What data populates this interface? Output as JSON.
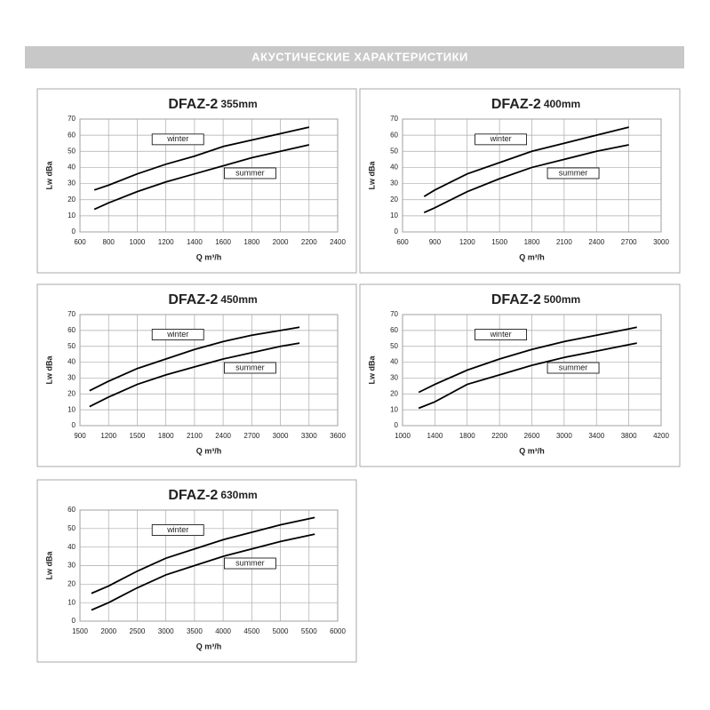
{
  "header": "АКУСТИЧЕСКИЕ  ХАРАКТЕРИСТИКИ",
  "chart_data": [
    {
      "type": "line",
      "title": "DFAZ-2",
      "subtitle": "355mm",
      "x_label": "Q m³/h",
      "y_label": "Lw dBa",
      "x": [
        700,
        800,
        1000,
        1200,
        1400,
        1600,
        1800,
        2000,
        2200
      ],
      "series": [
        {
          "name": "winter",
          "color": "#000000",
          "values": [
            26,
            29,
            36,
            42,
            47,
            53,
            57,
            61,
            65
          ]
        },
        {
          "name": "summer",
          "color": "#000000",
          "values": [
            14,
            18,
            25,
            31,
            36,
            41,
            46,
            50,
            54
          ]
        }
      ],
      "xlim": [
        600,
        2400
      ],
      "xticks": [
        600,
        800,
        1000,
        1200,
        1400,
        1600,
        1800,
        2000,
        2200,
        2400
      ],
      "ylim": [
        0,
        70
      ],
      "yticks": [
        0,
        10,
        20,
        30,
        40,
        50,
        60,
        70
      ],
      "grid": true
    },
    {
      "type": "line",
      "title": "DFAZ-2",
      "subtitle": "400mm",
      "x_label": "Q m³/h",
      "y_label": "Lw dBa",
      "x": [
        800,
        900,
        1200,
        1500,
        1800,
        2100,
        2400,
        2700
      ],
      "series": [
        {
          "name": "winter",
          "color": "#000000",
          "values": [
            22,
            26,
            36,
            43,
            50,
            55,
            60,
            65
          ]
        },
        {
          "name": "summer",
          "color": "#000000",
          "values": [
            12,
            15,
            25,
            33,
            40,
            45,
            50,
            54
          ]
        }
      ],
      "xlim": [
        600,
        3000
      ],
      "xticks": [
        600,
        900,
        1200,
        1500,
        1800,
        2100,
        2400,
        2700,
        3000
      ],
      "ylim": [
        0,
        70
      ],
      "yticks": [
        0,
        10,
        20,
        30,
        40,
        50,
        60,
        70
      ],
      "grid": true
    },
    {
      "type": "line",
      "title": "DFAZ-2",
      "subtitle": "450mm",
      "x_label": "Q m³/h",
      "y_label": "Lw dBa",
      "x": [
        1000,
        1200,
        1500,
        1800,
        2100,
        2400,
        2700,
        3000,
        3200
      ],
      "series": [
        {
          "name": "winter",
          "color": "#000000",
          "values": [
            22,
            28,
            36,
            42,
            48,
            53,
            57,
            60,
            62
          ]
        },
        {
          "name": "summer",
          "color": "#000000",
          "values": [
            12,
            18,
            26,
            32,
            37,
            42,
            46,
            50,
            52
          ]
        }
      ],
      "xlim": [
        900,
        3600
      ],
      "xticks": [
        900,
        1200,
        1500,
        1800,
        2100,
        2400,
        2700,
        3000,
        3300,
        3600
      ],
      "ylim": [
        0,
        70
      ],
      "yticks": [
        0,
        10,
        20,
        30,
        40,
        50,
        60,
        70
      ],
      "grid": true
    },
    {
      "type": "line",
      "title": "DFAZ-2",
      "subtitle": "500mm",
      "x_label": "Q m³/h",
      "y_label": "Lw dBa",
      "x": [
        1200,
        1400,
        1800,
        2200,
        2600,
        3000,
        3400,
        3800,
        3900
      ],
      "series": [
        {
          "name": "winter",
          "color": "#000000",
          "values": [
            21,
            26,
            35,
            42,
            48,
            53,
            57,
            61,
            62
          ]
        },
        {
          "name": "summer",
          "color": "#000000",
          "values": [
            11,
            15,
            26,
            32,
            38,
            43,
            47,
            51,
            52
          ]
        }
      ],
      "xlim": [
        1000,
        4200
      ],
      "xticks": [
        1000,
        1400,
        1800,
        2200,
        2600,
        3000,
        3400,
        3800,
        4200
      ],
      "ylim": [
        0,
        70
      ],
      "yticks": [
        0,
        10,
        20,
        30,
        40,
        50,
        60,
        70
      ],
      "grid": true
    },
    {
      "type": "line",
      "title": "DFAZ-2",
      "subtitle": "630mm",
      "x_label": "Q m³/h",
      "y_label": "Lw dBa",
      "x": [
        1700,
        2000,
        2500,
        3000,
        3500,
        4000,
        4500,
        5000,
        5600
      ],
      "series": [
        {
          "name": "winter",
          "color": "#000000",
          "values": [
            15,
            19,
            27,
            34,
            39,
            44,
            48,
            52,
            56
          ]
        },
        {
          "name": "summer",
          "color": "#000000",
          "values": [
            6,
            10,
            18,
            25,
            30,
            35,
            39,
            43,
            47
          ]
        }
      ],
      "xlim": [
        1500,
        6000
      ],
      "xticks": [
        1500,
        2000,
        2500,
        3000,
        3500,
        4000,
        4500,
        5000,
        5500,
        6000
      ],
      "ylim": [
        0,
        60
      ],
      "yticks": [
        0,
        10,
        20,
        30,
        40,
        50,
        60
      ],
      "grid": true
    }
  ]
}
